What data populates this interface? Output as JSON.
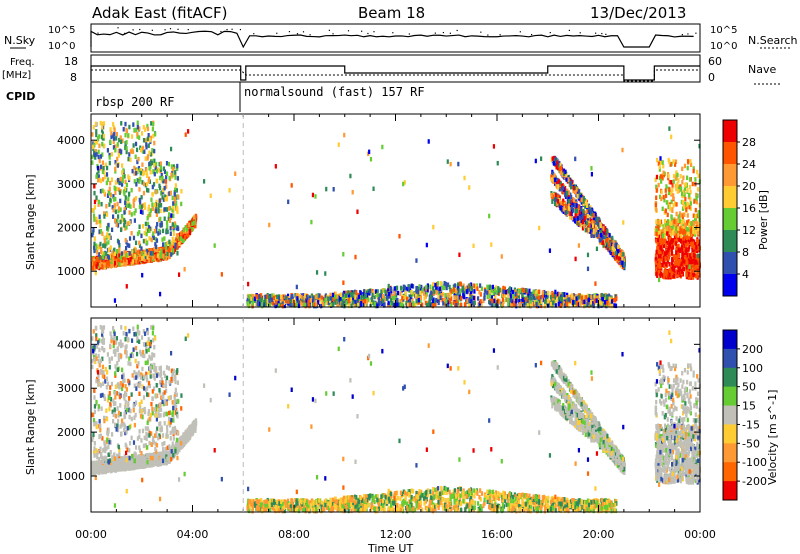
{
  "header": {
    "station": "Adak East (fitACF)",
    "beam": "Beam 18",
    "date": "13/Dec/2013"
  },
  "summary_panels": {
    "nsky_label": "N.Sky",
    "nsearch_label": "N.Search",
    "nsky_ticks": [
      "10^5",
      "10^0"
    ],
    "nsearch_ticks": [
      "10^5",
      "10^0"
    ],
    "freq_label_1": "Freq.",
    "freq_label_2": "[MHz]",
    "freq_ticks": [
      "18",
      "8"
    ],
    "nave_label": "Nave",
    "nave_ticks": [
      "60",
      "0"
    ],
    "cpid_label": "CPID",
    "cpid_1": "rbsp 200 RF",
    "cpid_2": "normalsound (fast) 157 RF"
  },
  "colors": {
    "power_scale": [
      "#0000ee",
      "#3050b0",
      "#2e8b57",
      "#66cc33",
      "#ffcc33",
      "#ff9933",
      "#ff5500",
      "#ee0000"
    ],
    "velocity_scale": [
      "#ee0000",
      "#ff6600",
      "#ff9933",
      "#ffcc33",
      "#c0c0b8",
      "#66cc33",
      "#2e8b57",
      "#3050b0",
      "#0000cc"
    ],
    "ground": "#c0c0b8"
  },
  "chart_data": [
    {
      "type": "heatmap",
      "ylabel": "Slant Range [km]",
      "xlabel": "",
      "x_ticks": [
        "00:00",
        "04:00",
        "08:00",
        "12:00",
        "16:00",
        "20:00",
        "00:00"
      ],
      "xlim_hours": [
        0,
        24
      ],
      "y_ticks": [
        1000,
        2000,
        3000,
        4000
      ],
      "ylim": [
        180,
        4600
      ],
      "colorbar_label": "Power [dB]",
      "colorbar_ticks": [
        "4",
        "8",
        "12",
        "16",
        "20",
        "24",
        "28"
      ],
      "mode_change_hour": 6.0,
      "data_gap_hours": [
        21.0,
        22.2
      ]
    },
    {
      "type": "heatmap",
      "ylabel": "Slant Range [km]",
      "xlabel": "Time UT",
      "x_ticks": [
        "00:00",
        "04:00",
        "08:00",
        "12:00",
        "16:00",
        "20:00",
        "00:00"
      ],
      "xlim_hours": [
        0,
        24
      ],
      "y_ticks": [
        1000,
        2000,
        3000,
        4000
      ],
      "ylim": [
        180,
        4600
      ],
      "colorbar_label": "Velocity [m s^-1]",
      "colorbar_ticks": [
        "200",
        "100",
        "50",
        "15",
        "-15",
        "-50",
        "-100",
        "-200"
      ],
      "mode_change_hour": 6.0,
      "data_gap_hours": [
        21.0,
        22.2
      ]
    }
  ]
}
